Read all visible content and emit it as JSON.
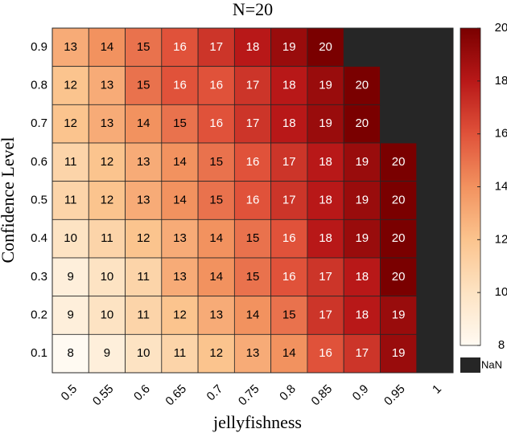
{
  "chart_data": {
    "type": "heatmap",
    "title": "N=20",
    "x_label": "jellyfishness",
    "y_label": "Confidence Level",
    "x_categories": [
      "0.5",
      "0.55",
      "0.6",
      "0.65",
      "0.7",
      "0.75",
      "0.8",
      "0.85",
      "0.9",
      "0.95",
      "1"
    ],
    "y_categories": [
      "0.9",
      "0.8",
      "0.7",
      "0.6",
      "0.5",
      "0.4",
      "0.3",
      "0.2",
      "0.1"
    ],
    "values": [
      [
        13,
        14,
        15,
        16,
        17,
        18,
        19,
        20,
        null,
        null,
        null
      ],
      [
        12,
        13,
        15,
        16,
        16,
        17,
        18,
        19,
        20,
        null,
        null
      ],
      [
        12,
        13,
        14,
        15,
        16,
        17,
        18,
        19,
        20,
        null,
        null
      ],
      [
        11,
        12,
        13,
        14,
        15,
        16,
        17,
        18,
        19,
        20,
        null
      ],
      [
        11,
        12,
        13,
        14,
        15,
        16,
        17,
        18,
        19,
        20,
        null
      ],
      [
        10,
        11,
        12,
        13,
        14,
        15,
        16,
        18,
        19,
        20,
        null
      ],
      [
        9,
        10,
        11,
        13,
        14,
        15,
        16,
        17,
        18,
        20,
        null
      ],
      [
        9,
        10,
        11,
        12,
        13,
        14,
        15,
        17,
        18,
        19,
        null
      ],
      [
        8,
        9,
        10,
        11,
        12,
        13,
        14,
        16,
        17,
        19,
        null
      ]
    ],
    "clim": [
      8,
      20
    ],
    "cticks": [
      8,
      10,
      12,
      14,
      16,
      18,
      20
    ],
    "colormap": [
      "#fffaf2",
      "#fde3c3",
      "#fbc48e",
      "#f2925f",
      "#e0523a",
      "#b81818",
      "#7a0000"
    ],
    "nan_color": "#262626",
    "nan_label": "NaN"
  }
}
